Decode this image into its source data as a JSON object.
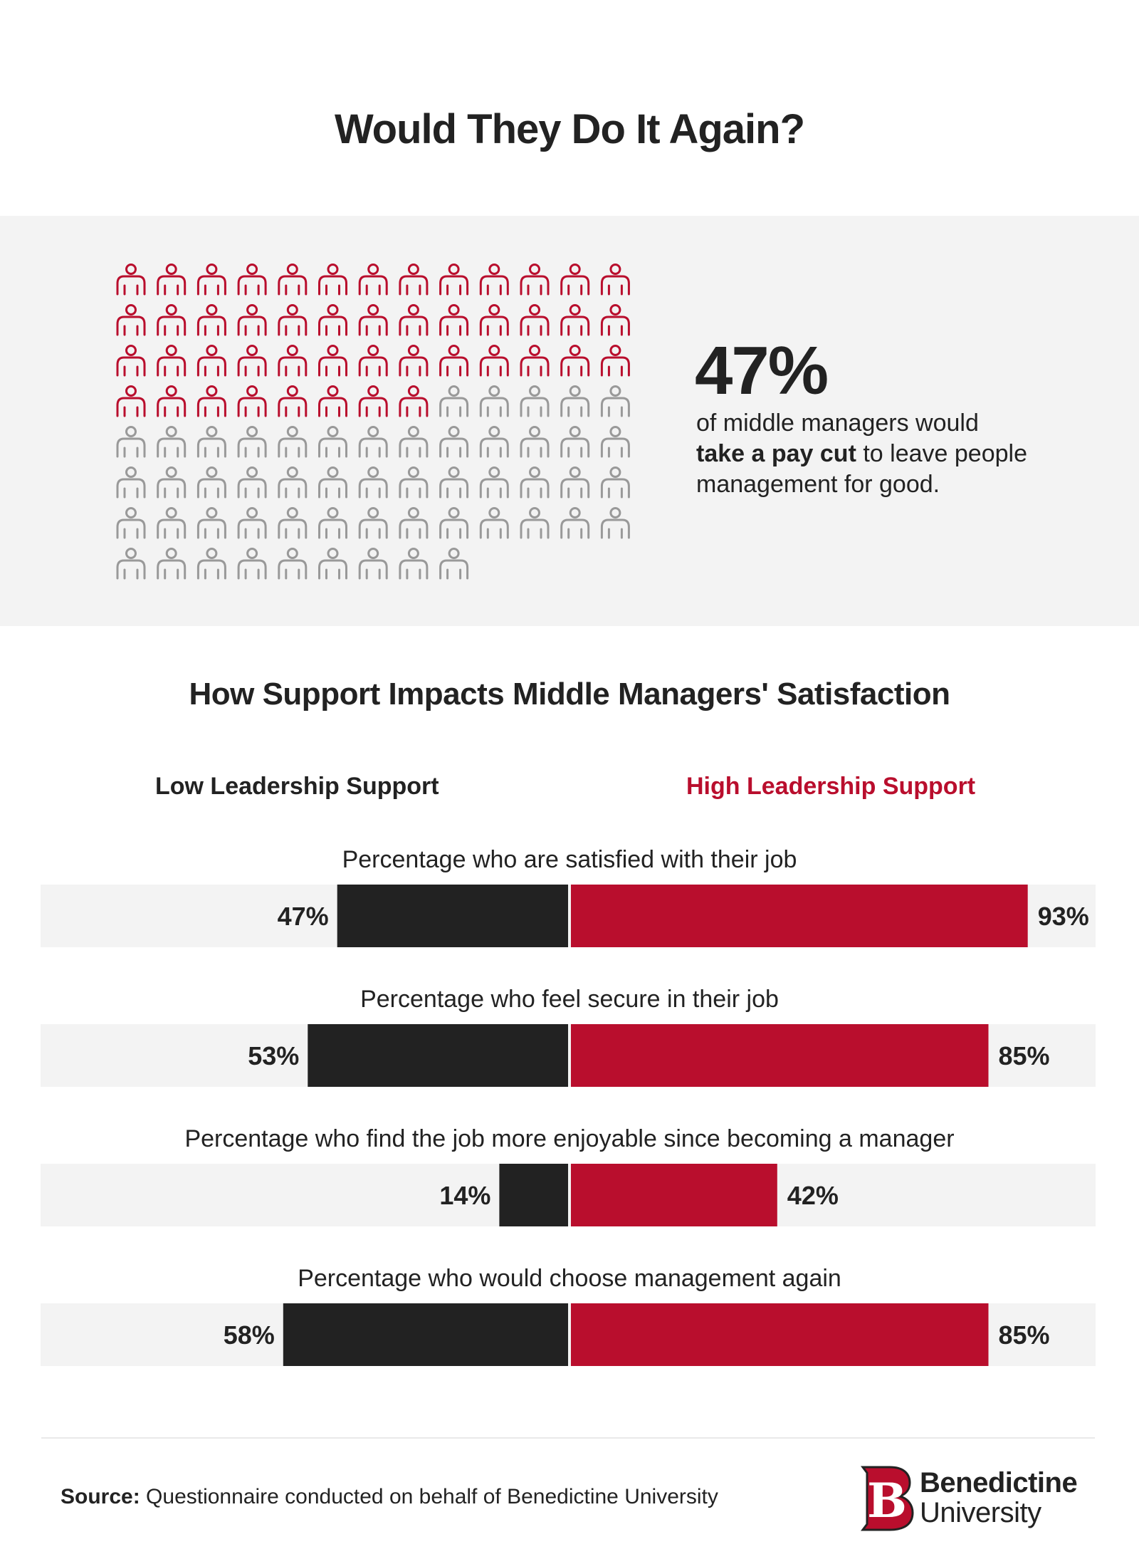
{
  "title": "Would They Do It Again?",
  "waffle": {
    "total": 100,
    "highlighted": 47,
    "columns": 13,
    "highlight_color": "#b90e2d",
    "base_color": "#999999",
    "icon": "person-icon"
  },
  "stat": {
    "value": "47%",
    "text_before": "of middle managers would",
    "text_bold": "take a pay cut",
    "text_after": "to leave people management for good."
  },
  "chart_title": "How Support Impacts Middle Managers' Satisfaction",
  "legend": {
    "low": "Low Leadership Support",
    "high": "High Leadership Support"
  },
  "colors": {
    "low": "#222222",
    "high": "#b90e2d",
    "track": "#f3f3f3"
  },
  "chart_data": {
    "type": "bar",
    "categories": [
      "Percentage who are satisfied with their job",
      "Percentage who feel secure in their job",
      "Percentage who find the job more enjoyable since becoming a manager",
      "Percentage who would choose management again"
    ],
    "series": [
      {
        "name": "Low Leadership Support",
        "values": [
          47,
          53,
          14,
          58
        ],
        "labels": [
          "47%",
          "53%",
          "14%",
          "58%"
        ]
      },
      {
        "name": "High Leadership Support",
        "values": [
          93,
          85,
          42,
          85
        ],
        "labels": [
          "93%",
          "85%",
          "42%",
          "85%"
        ]
      }
    ],
    "unit": "%",
    "xlim": [
      0,
      100
    ]
  },
  "source": {
    "label": "Source:",
    "text": "Questionnaire conducted on behalf of Benedictine University"
  },
  "logo": {
    "line1": "Benedictine",
    "line2": "University",
    "letter": "B"
  }
}
